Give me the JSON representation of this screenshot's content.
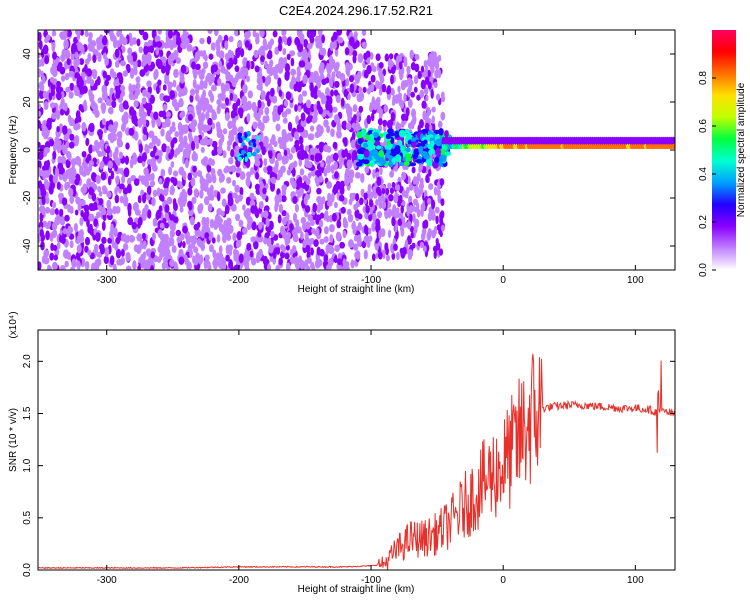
{
  "figure_title": "C2E4.2024.296.17.52.R21",
  "colors": {
    "signal_line": "#e8302a",
    "axes": "#000000"
  },
  "colormap": [
    "#ffffff",
    "#c080ff",
    "#8a00ff",
    "#2000ff",
    "#00a0ff",
    "#00ffd0",
    "#00ff40",
    "#c0ff00",
    "#ffe000",
    "#ff7000",
    "#ff0000",
    "#ff0060"
  ],
  "chart_data": [
    {
      "type": "heatmap",
      "title": "",
      "xlabel": "Height of straight line (km)",
      "ylabel": "Frequency (Hz)",
      "xlim": [
        -352,
        130
      ],
      "ylim": [
        -50,
        50
      ],
      "xticks": [
        -300,
        -200,
        -100,
        0,
        100
      ],
      "xtick_labels": [
        "-300",
        "-200",
        "-100",
        "0",
        "100"
      ],
      "yticks": [
        -40,
        -20,
        0,
        20,
        40
      ],
      "ytick_labels": [
        "-40",
        "-20",
        "0",
        "20",
        "40"
      ],
      "colorbar": {
        "label": "Normalized spectral amplitude",
        "range": [
          0,
          1
        ],
        "ticks": [
          0.0,
          0.2,
          0.4,
          0.6,
          0.8
        ],
        "tick_labels": [
          "0.0",
          "0.2",
          "0.4",
          "0.6",
          "0.8"
        ]
      },
      "features": {
        "broadband_noise_range_km": [
          -352,
          -105
        ],
        "transition_range_km": [
          -105,
          -45
        ],
        "carrier_onset_km": -45,
        "carrier_frequency_hz": 1.5,
        "carrier_peak_amplitude": 0.85
      }
    },
    {
      "type": "line",
      "title": "",
      "xlabel": "Height of straight line (km)",
      "ylabel": "SNR (10 * v/v)",
      "scale_label": "(x10⁴)",
      "xlim": [
        -352,
        130
      ],
      "ylim": [
        0,
        2.3
      ],
      "xticks": [
        -300,
        -200,
        -100,
        0,
        100
      ],
      "xtick_labels": [
        "-300",
        "-200",
        "-100",
        "0",
        "100"
      ],
      "yticks": [
        0.0,
        0.5,
        1.0,
        1.5,
        2.0
      ],
      "ytick_labels": [
        "0.0",
        "0.5",
        "1.0",
        "1.5",
        "2.0"
      ],
      "series": [
        {
          "x": [
            -352,
            -300,
            -250,
            -200,
            -150,
            -120,
            -100,
            -90,
            -80,
            -70,
            -60,
            -50,
            -40,
            -30,
            -20,
            -10,
            0,
            10,
            20,
            30,
            40,
            50,
            60,
            70,
            80,
            90,
            100,
            110,
            118,
            120,
            130
          ],
          "values": [
            0.02,
            0.02,
            0.02,
            0.03,
            0.03,
            0.03,
            0.04,
            0.06,
            0.2,
            0.3,
            0.3,
            0.35,
            0.45,
            0.6,
            0.75,
            0.9,
            1.0,
            1.2,
            1.45,
            1.55,
            1.57,
            1.58,
            1.58,
            1.57,
            1.56,
            1.55,
            1.55,
            1.54,
            1.5,
            1.52,
            1.49
          ]
        }
      ]
    }
  ]
}
